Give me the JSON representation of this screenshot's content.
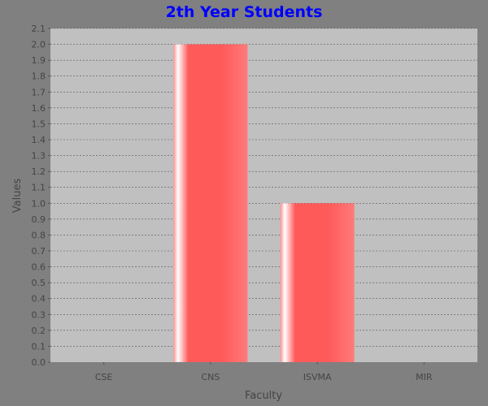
{
  "chart_data": {
    "type": "bar",
    "title": "2th Year Students",
    "xlabel": "Faculty",
    "ylabel": "Values",
    "categories": [
      "CSE",
      "CNS",
      "ISVMA",
      "MIR"
    ],
    "values": [
      0,
      2,
      1,
      0
    ],
    "ylim": [
      0,
      2.1
    ],
    "y_ticks": [
      "0.0",
      "0.1",
      "0.2",
      "0.3",
      "0.4",
      "0.5",
      "0.6",
      "0.7",
      "0.8",
      "0.9",
      "1.0",
      "1.1",
      "1.2",
      "1.3",
      "1.4",
      "1.5",
      "1.6",
      "1.7",
      "1.8",
      "1.9",
      "2.0",
      "2.1"
    ],
    "grid": true,
    "legend": false,
    "colors": {
      "page_background": "#808080",
      "plot_background": "#c0c0c0",
      "bar": "#ff5a5a",
      "title": "#0000ff",
      "gridline": "#555555",
      "text": "#444444"
    }
  }
}
